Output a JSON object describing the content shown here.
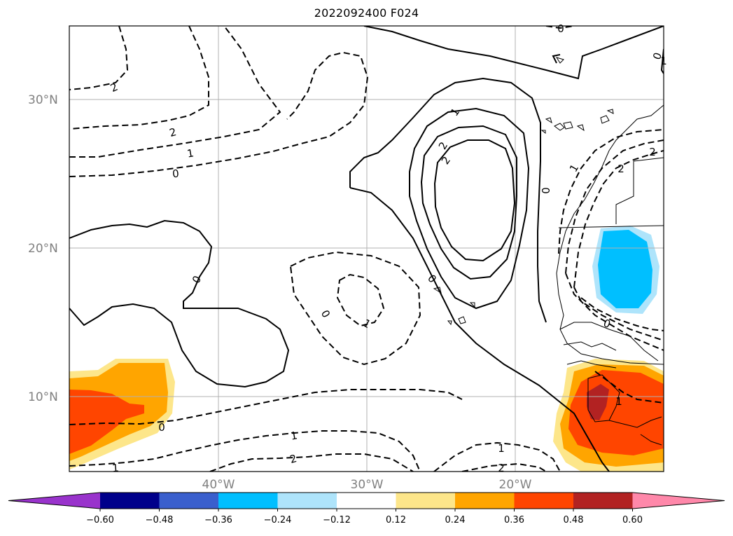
{
  "title": "2022092400 F024",
  "lat_labels": [
    "30°N",
    "20°N",
    "10°N"
  ],
  "lon_labels": [
    "40°W",
    "30°W",
    "20°W"
  ],
  "colorbar": {
    "ticks": [
      "−0.60",
      "−0.48",
      "−0.36",
      "−0.24",
      "−0.12",
      "0.12",
      "0.24",
      "0.36",
      "0.48",
      "0.60"
    ],
    "colors": [
      "#9933cc",
      "#00008b",
      "#3a5fcd",
      "#00bfff",
      "#aee4fb",
      "#ffffff",
      "#fde68a",
      "#ffa500",
      "#ff4500",
      "#b22222",
      "#ff88aa"
    ]
  },
  "contour_labels": [
    "2",
    "2",
    "1",
    "0",
    "1",
    "2",
    "2",
    "0",
    "0",
    "0",
    "1",
    "0",
    "2",
    "2",
    "1",
    "0",
    "0",
    "0",
    "1",
    "1",
    "2",
    "1",
    "2",
    "1",
    "0",
    "1"
  ]
}
